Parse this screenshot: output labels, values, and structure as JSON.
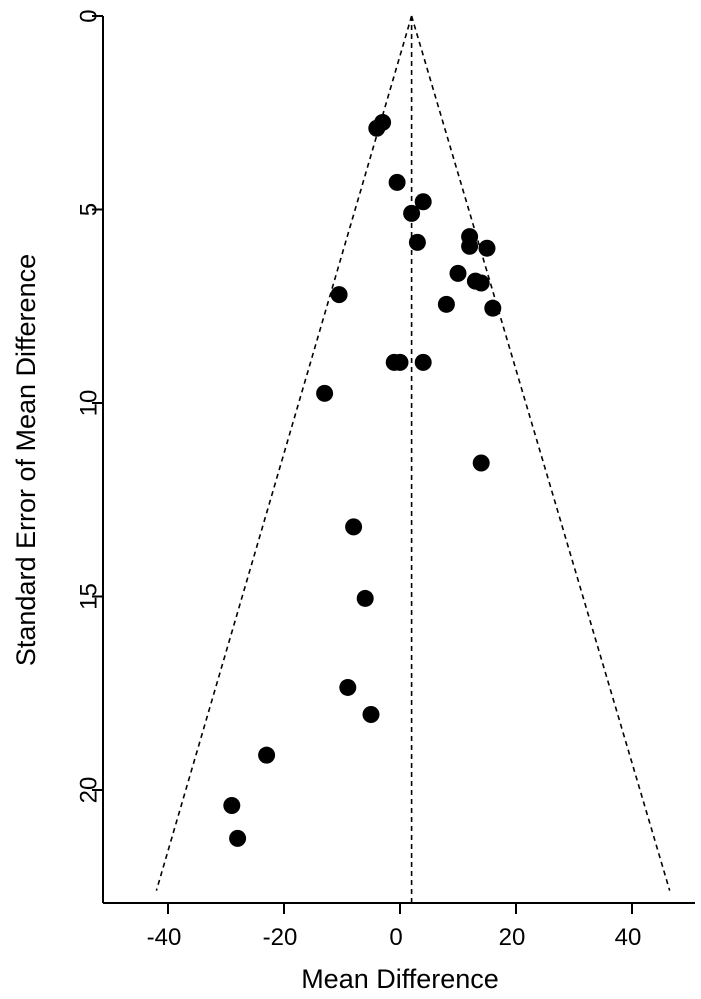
{
  "chart_data": {
    "type": "scatter",
    "title": "",
    "xlabel": "Mean Difference",
    "ylabel": "Standard Error of Mean Difference",
    "xlim": [
      -50,
      50
    ],
    "ylim": [
      23,
      0
    ],
    "y_inverted": true,
    "xticks": [
      -40,
      -20,
      0,
      20,
      40
    ],
    "xtick_labels": [
      "-40",
      "-20",
      "0",
      "20",
      "40"
    ],
    "yticks": [
      0,
      5,
      10,
      15,
      20
    ],
    "ytick_labels": [
      "0",
      "5",
      "10",
      "15",
      "20"
    ],
    "grid": false,
    "legend": "none",
    "pooled_estimate": 2.0,
    "funnel_lines": {
      "apex": [
        2.0,
        0
      ],
      "left_base": [
        -42,
        22.6
      ],
      "right_base": [
        46.5,
        22.6
      ]
    },
    "points": [
      {
        "x": -4,
        "y": 2.9
      },
      {
        "x": -3,
        "y": 2.75
      },
      {
        "x": -0.5,
        "y": 4.3
      },
      {
        "x": 4,
        "y": 4.8
      },
      {
        "x": 2,
        "y": 5.1
      },
      {
        "x": 3,
        "y": 5.85
      },
      {
        "x": 12,
        "y": 5.7
      },
      {
        "x": 12,
        "y": 5.95
      },
      {
        "x": 15,
        "y": 6.0
      },
      {
        "x": 10,
        "y": 6.65
      },
      {
        "x": 13,
        "y": 6.85
      },
      {
        "x": 14,
        "y": 6.9
      },
      {
        "x": -10.5,
        "y": 7.2
      },
      {
        "x": 8,
        "y": 7.45
      },
      {
        "x": 16,
        "y": 7.55
      },
      {
        "x": -1,
        "y": 8.95
      },
      {
        "x": 0,
        "y": 8.95
      },
      {
        "x": 4,
        "y": 8.95
      },
      {
        "x": -13,
        "y": 9.75
      },
      {
        "x": 14,
        "y": 11.55
      },
      {
        "x": -8,
        "y": 13.2
      },
      {
        "x": -6,
        "y": 15.05
      },
      {
        "x": -9,
        "y": 17.35
      },
      {
        "x": -5,
        "y": 18.05
      },
      {
        "x": -23,
        "y": 19.1
      },
      {
        "x": -29,
        "y": 20.4
      },
      {
        "x": -28,
        "y": 21.25
      }
    ],
    "marker_color": "#000000",
    "line_color": "#000000"
  }
}
